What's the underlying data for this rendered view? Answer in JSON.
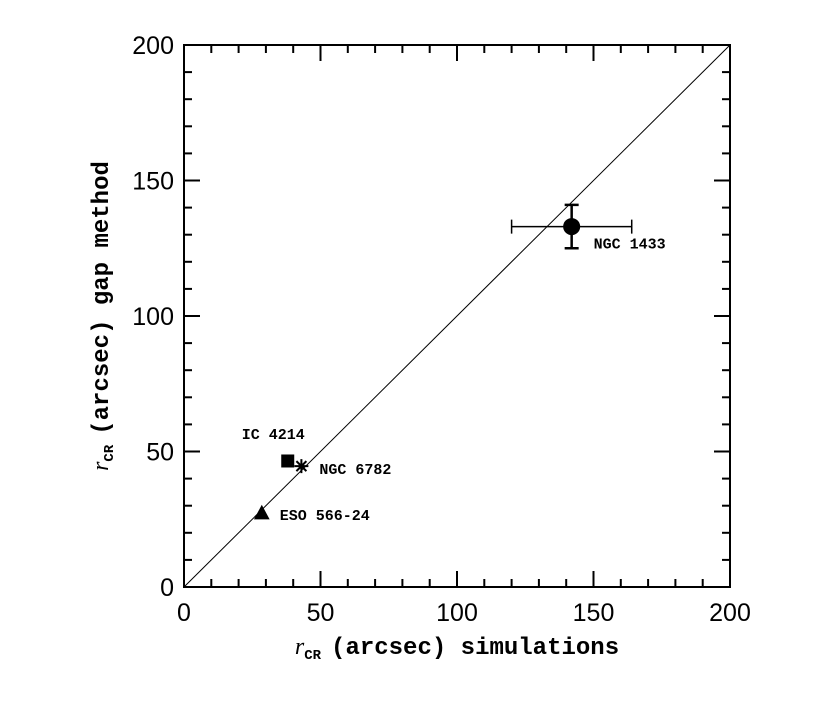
{
  "chart_data": {
    "type": "scatter",
    "x_label": {
      "symbol": "r",
      "subscript": "CR",
      "text": "(arcsec) simulations"
    },
    "y_label": {
      "symbol": "r",
      "subscript": "CR",
      "text": "(arcsec) gap method"
    },
    "xlim": [
      0,
      200
    ],
    "ylim": [
      0,
      200
    ],
    "xticks": [
      0,
      50,
      100,
      150,
      200
    ],
    "yticks": [
      0,
      50,
      100,
      150,
      200
    ],
    "minor_xticks": [
      10,
      20,
      30,
      40,
      60,
      70,
      80,
      90,
      110,
      120,
      130,
      140,
      160,
      170,
      180,
      190
    ],
    "minor_yticks": [
      10,
      20,
      30,
      40,
      60,
      70,
      80,
      90,
      110,
      120,
      130,
      140,
      160,
      170,
      180,
      190
    ],
    "series": [
      {
        "name": "NGC 1433",
        "marker": "circle",
        "color": "#000000",
        "x": 142,
        "y": 133,
        "xerr": 22,
        "yerr": 8
      },
      {
        "name": "IC 4214",
        "marker": "square",
        "color": "#000000",
        "x": 38,
        "y": 46.5
      },
      {
        "name": "NGC 6782",
        "marker": "star",
        "color": "#000000",
        "x": 43,
        "y": 44.6
      },
      {
        "name": "ESO 566-24",
        "marker": "triangle",
        "color": "#000000",
        "x": 28.5,
        "y": 27
      }
    ]
  }
}
